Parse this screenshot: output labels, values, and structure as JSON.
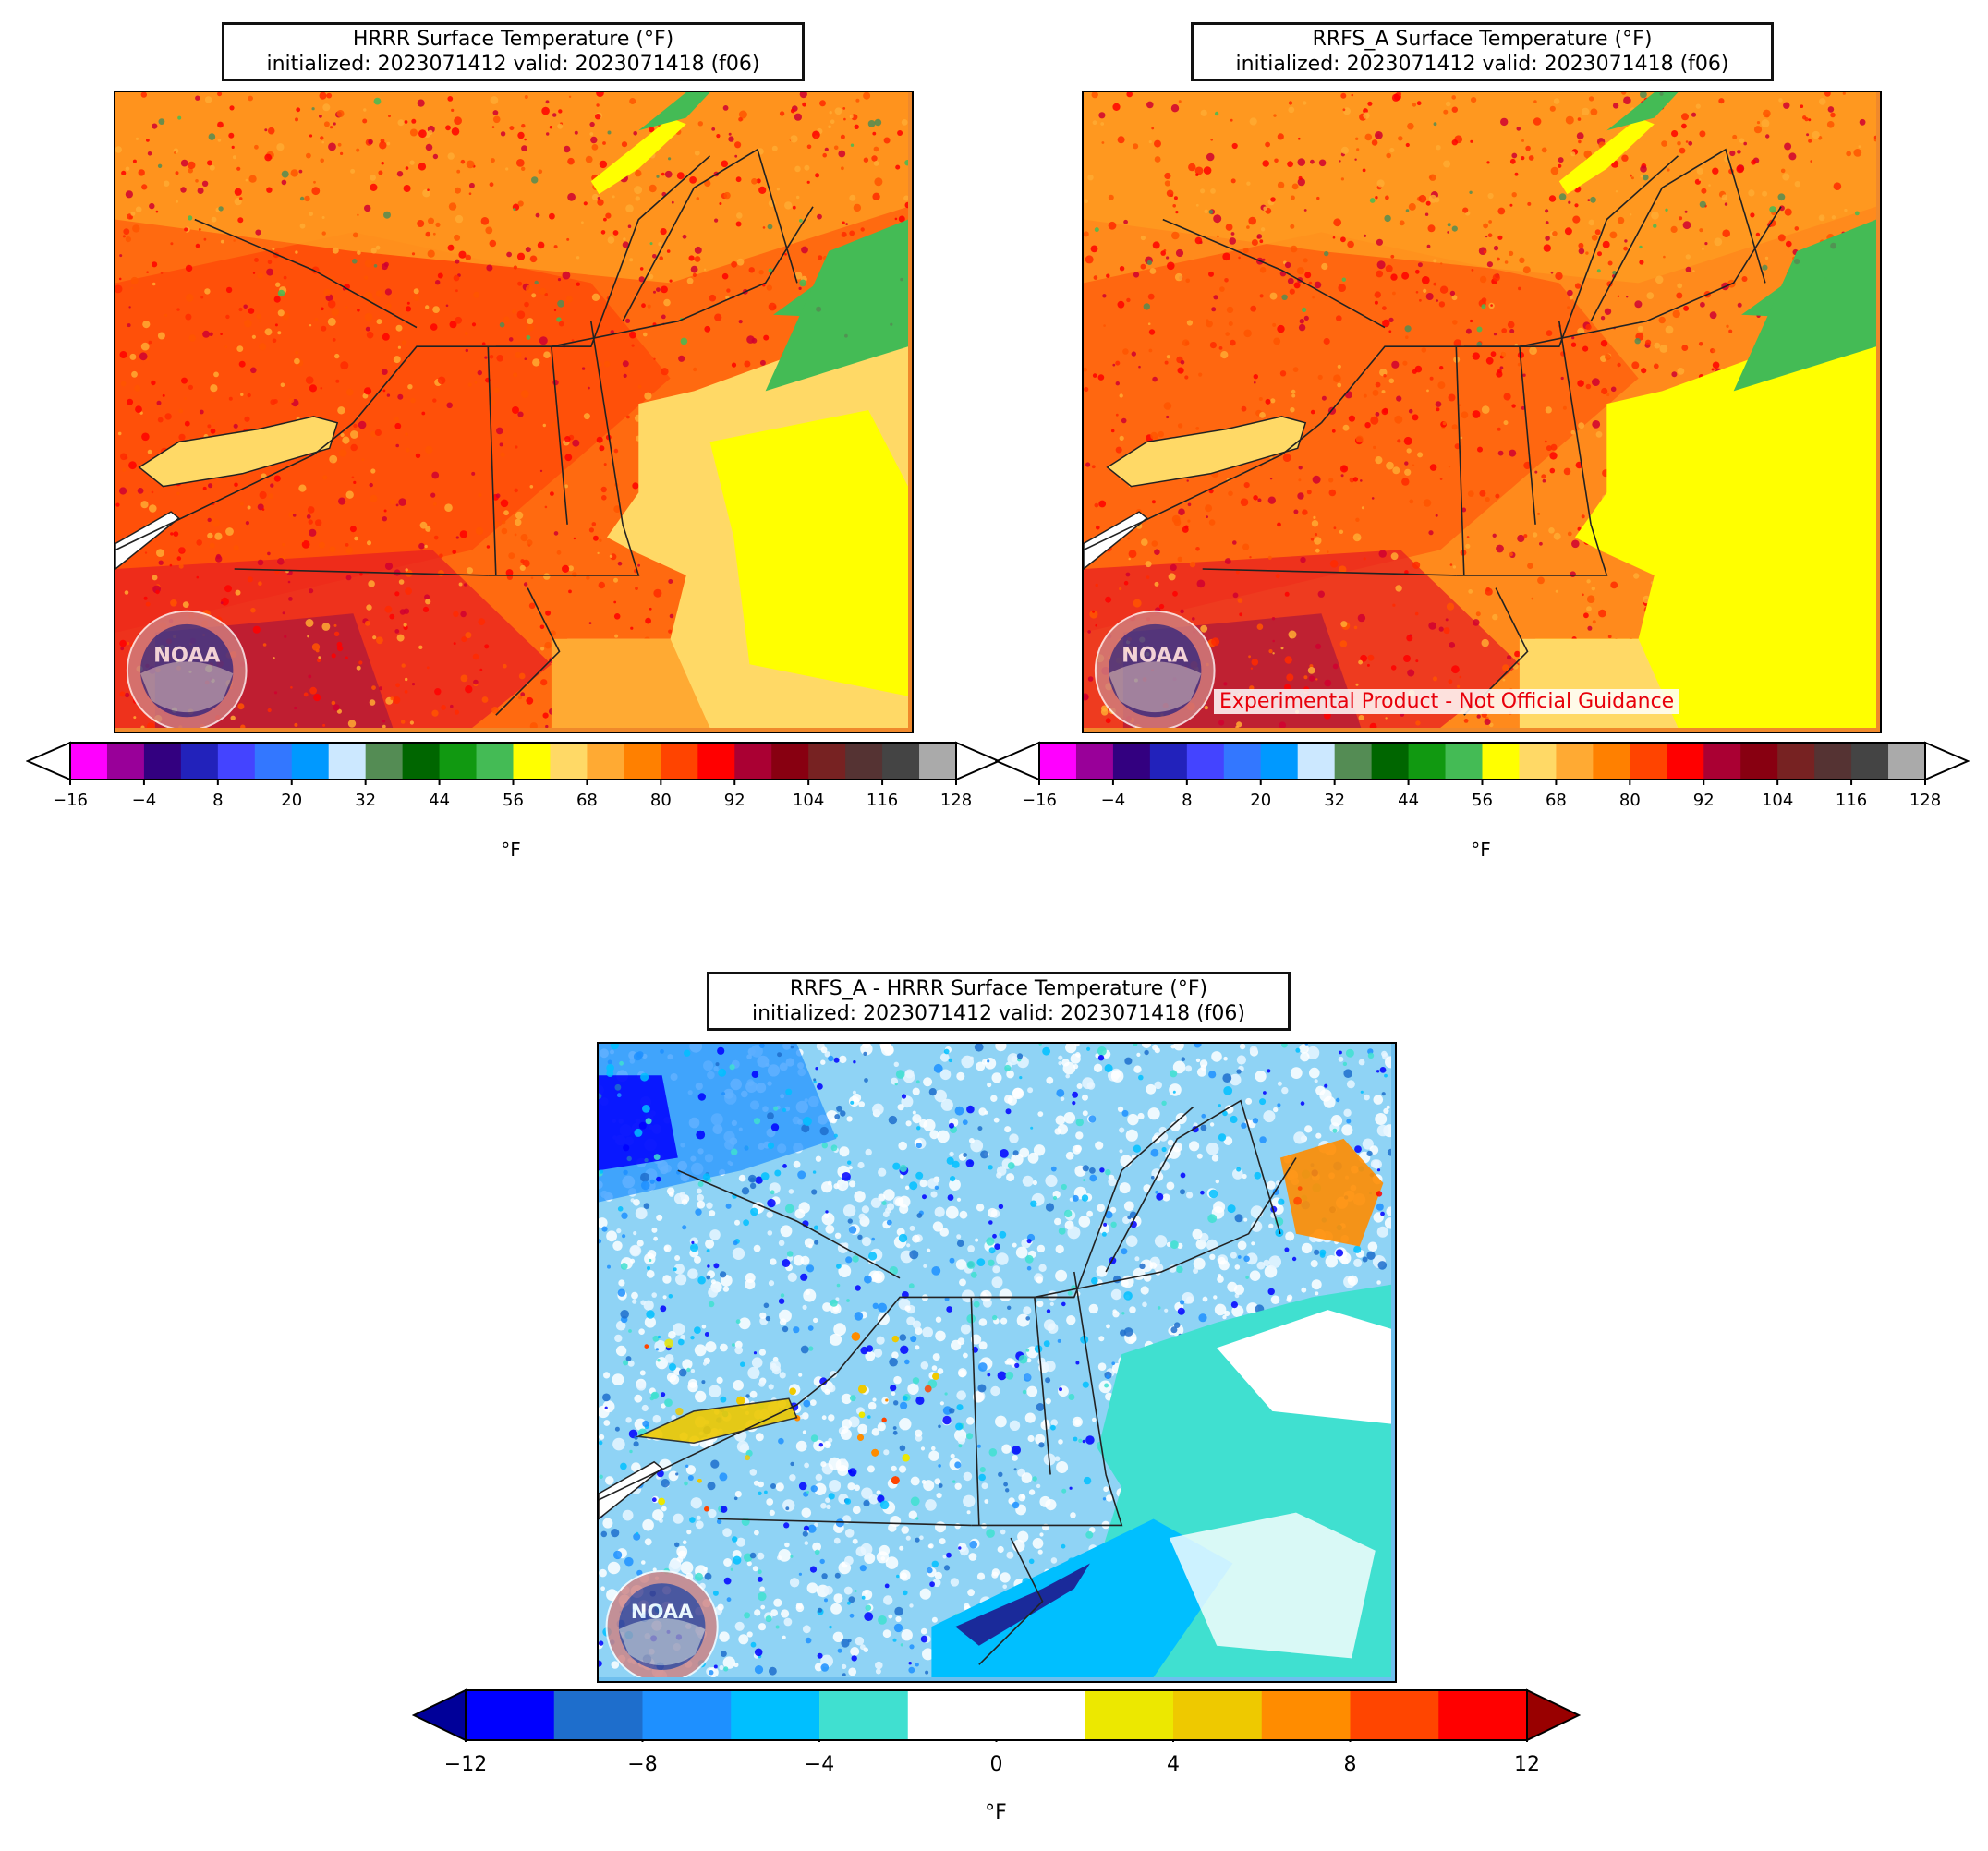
{
  "panels": {
    "hrrr": {
      "title_line1": "HRRR Surface Temperature (°F)",
      "title_line2": "initialized: 2023071412 valid: 2023071418 (f06)"
    },
    "rrfs": {
      "title_line1": "RRFS_A Surface Temperature (°F)",
      "title_line2": "initialized: 2023071412 valid: 2023071418 (f06)",
      "disclaimer": "Experimental Product - Not Official Guidance"
    },
    "diff": {
      "title_line1": "RRFS_A - HRRR Surface Temperature (°F)",
      "title_line2": "initialized: 2023071412 valid: 2023071418 (f06)"
    }
  },
  "temp_colorbar": {
    "units": "°F",
    "min": -16,
    "max": 128,
    "step": 6,
    "ticks": [
      "−16",
      "−4",
      "8",
      "20",
      "32",
      "44",
      "56",
      "68",
      "80",
      "92",
      "104",
      "116",
      "128"
    ],
    "tick_values": [
      -16,
      -4,
      8,
      20,
      32,
      44,
      56,
      68,
      80,
      92,
      104,
      116,
      128
    ],
    "under_color": "#ffffff",
    "over_color": "#ffffff",
    "colors": [
      "#ff00ff",
      "#990099",
      "#330080",
      "#2222bb",
      "#4444ff",
      "#3377ff",
      "#0099ff",
      "#cce8ff",
      "#548c54",
      "#006600",
      "#119911",
      "#44bb55",
      "#ffff00",
      "#ffd966",
      "#ffaa33",
      "#ff8000",
      "#ff4400",
      "#ff0000",
      "#aa0033",
      "#880011",
      "#772222",
      "#553333",
      "#444444",
      "#aaaaaa"
    ]
  },
  "diff_colorbar": {
    "units": "°F",
    "min": -12,
    "max": 12,
    "step": 2,
    "ticks": [
      "−12",
      "−8",
      "−4",
      "0",
      "4",
      "8",
      "12"
    ],
    "tick_values": [
      -12,
      -8,
      -4,
      0,
      4,
      8,
      12
    ],
    "under_color": "#000099",
    "over_color": "#990000",
    "colors": [
      "#0000ff",
      "#1e6ecc",
      "#1e90ff",
      "#00bfff",
      "#40e0d0",
      "#ffffff",
      "#ffffff",
      "#ece800",
      "#eec900",
      "#ff8c00",
      "#ff4500",
      "#ff0000"
    ]
  },
  "logo": {
    "icon": "noaa-logo-icon",
    "text": "NOAA"
  }
}
